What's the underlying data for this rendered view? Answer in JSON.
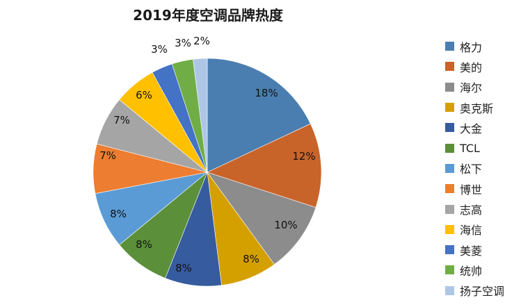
{
  "title": "2019年度空调品牌热度",
  "chart_data": {
    "type": "pie",
    "title": "2019年度空调品牌热度",
    "categories": [
      "格力",
      "美的",
      "海尔",
      "奥克斯",
      "大金",
      "TCL",
      "松下",
      "博世",
      "志高",
      "海信",
      "美菱",
      "统帅",
      "扬子空调"
    ],
    "values": [
      18,
      12,
      10,
      8,
      8,
      8,
      8,
      7,
      7,
      6,
      3,
      3,
      2
    ],
    "labels": [
      "18%",
      "12%",
      "10%",
      "8%",
      "8%",
      "8%",
      "8%",
      "7%",
      "7%",
      "6%",
      "3%",
      "3%",
      "2%"
    ],
    "colors": [
      "#4a7eb0",
      "#c8642a",
      "#8c8c8c",
      "#d4a000",
      "#365b9e",
      "#5b8f3a",
      "#5b9bd5",
      "#ed7d31",
      "#a5a5a5",
      "#ffc000",
      "#4472c4",
      "#70ad47",
      "#aec6e6"
    ],
    "start_angle": "12 o'clock, clockwise",
    "legend_position": "right"
  },
  "legend": {
    "items": [
      {
        "label": "格力",
        "color": "#4a7eb0"
      },
      {
        "label": "美的",
        "color": "#c8642a"
      },
      {
        "label": "海尔",
        "color": "#8c8c8c"
      },
      {
        "label": "奥克斯",
        "color": "#d4a000"
      },
      {
        "label": "大金",
        "color": "#365b9e"
      },
      {
        "label": "TCL",
        "color": "#5b8f3a"
      },
      {
        "label": "松下",
        "color": "#5b9bd5"
      },
      {
        "label": "博世",
        "color": "#ed7d31"
      },
      {
        "label": "志高",
        "color": "#a5a5a5"
      },
      {
        "label": "海信",
        "color": "#ffc000"
      },
      {
        "label": "美菱",
        "color": "#4472c4"
      },
      {
        "label": "统帅",
        "color": "#70ad47"
      },
      {
        "label": "扬子空调",
        "color": "#aec6e6"
      }
    ]
  }
}
